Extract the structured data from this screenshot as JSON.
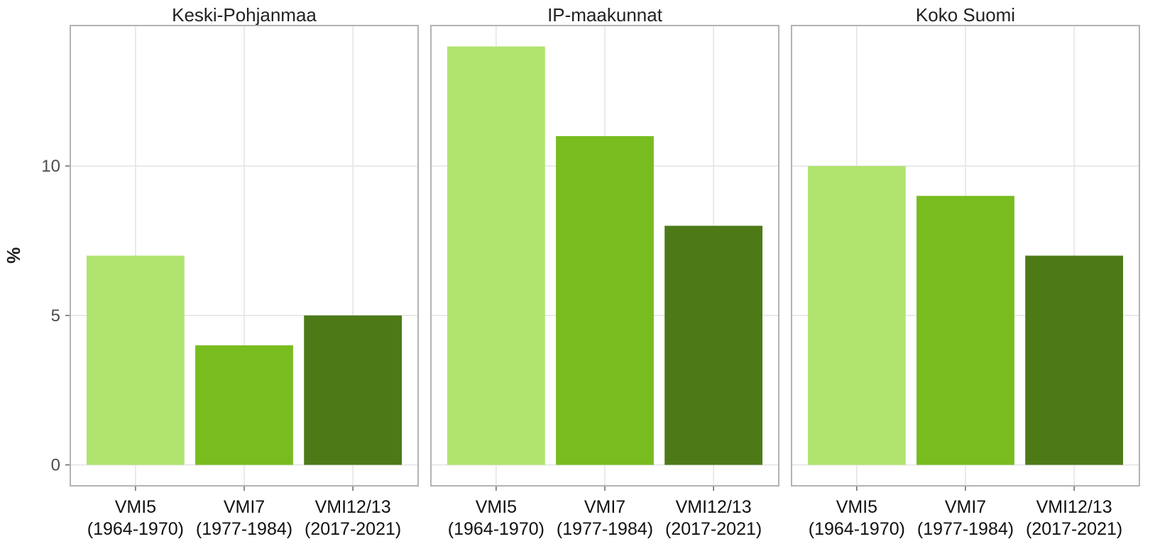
{
  "y_label": "%",
  "chart_data": [
    {
      "type": "bar",
      "title": "Keski-Pohjanmaa",
      "categories": [
        "VMI5\n(1964-1970)",
        "VMI7\n(1977-1984)",
        "VMI12/13\n(2017-2021)"
      ],
      "values": [
        7,
        4,
        5
      ],
      "colors": [
        "#b0e46f",
        "#78bc20",
        "#4d7a17"
      ],
      "ylim": [
        -0.7,
        14.7
      ],
      "yticks": [
        0,
        5,
        10
      ],
      "grid": true
    },
    {
      "type": "bar",
      "title": "IP-maakunnat",
      "categories": [
        "VMI5\n(1964-1970)",
        "VMI7\n(1977-1984)",
        "VMI12/13\n(2017-2021)"
      ],
      "values": [
        14,
        11,
        8
      ],
      "colors": [
        "#b0e46f",
        "#78bc20",
        "#4d7a17"
      ],
      "ylim": [
        -0.7,
        14.7
      ],
      "yticks": [
        0,
        5,
        10
      ],
      "grid": true
    },
    {
      "type": "bar",
      "title": "Koko Suomi",
      "categories": [
        "VMI5\n(1964-1970)",
        "VMI7\n(1977-1984)",
        "VMI12/13\n(2017-2021)"
      ],
      "values": [
        10,
        9,
        7
      ],
      "colors": [
        "#b0e46f",
        "#78bc20",
        "#4d7a17"
      ],
      "ylim": [
        -0.7,
        14.7
      ],
      "yticks": [
        0,
        5,
        10
      ],
      "grid": true
    }
  ]
}
